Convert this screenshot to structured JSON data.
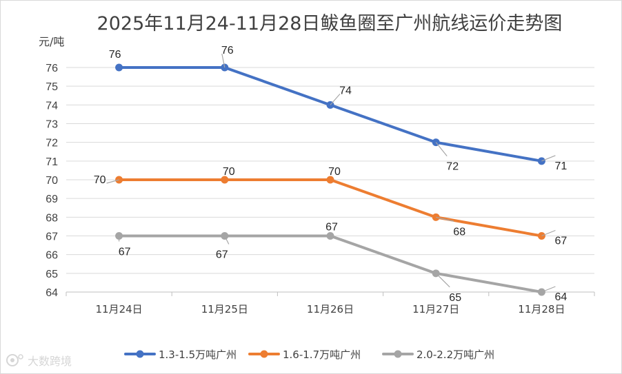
{
  "chart_data": {
    "type": "line",
    "title": "2025年11月24-11月28日鲅鱼圈至广州航线运价走势图",
    "ylabel": "元/吨",
    "xlabel": "",
    "categories": [
      "11月24日",
      "11月25日",
      "11月26日",
      "11月27日",
      "11月28日"
    ],
    "ylim": [
      64,
      76
    ],
    "yticks": [
      64,
      65,
      66,
      67,
      68,
      69,
      70,
      71,
      72,
      73,
      74,
      75,
      76
    ],
    "grid": true,
    "legend_position": "bottom",
    "data_labels": true,
    "series": [
      {
        "name": "1.3-1.5万吨广州",
        "values": [
          76,
          76,
          74,
          72,
          71
        ],
        "color": "#4472c4"
      },
      {
        "name": "1.6-1.7万吨广州",
        "values": [
          70,
          70,
          70,
          68,
          67
        ],
        "color": "#ed7d31"
      },
      {
        "name": "2.0-2.2万吨广州",
        "values": [
          67,
          67,
          67,
          65,
          64
        ],
        "color": "#a5a5a5"
      }
    ]
  },
  "watermark": {
    "text": "大数跨境",
    "icon": "camera-logo-icon"
  }
}
